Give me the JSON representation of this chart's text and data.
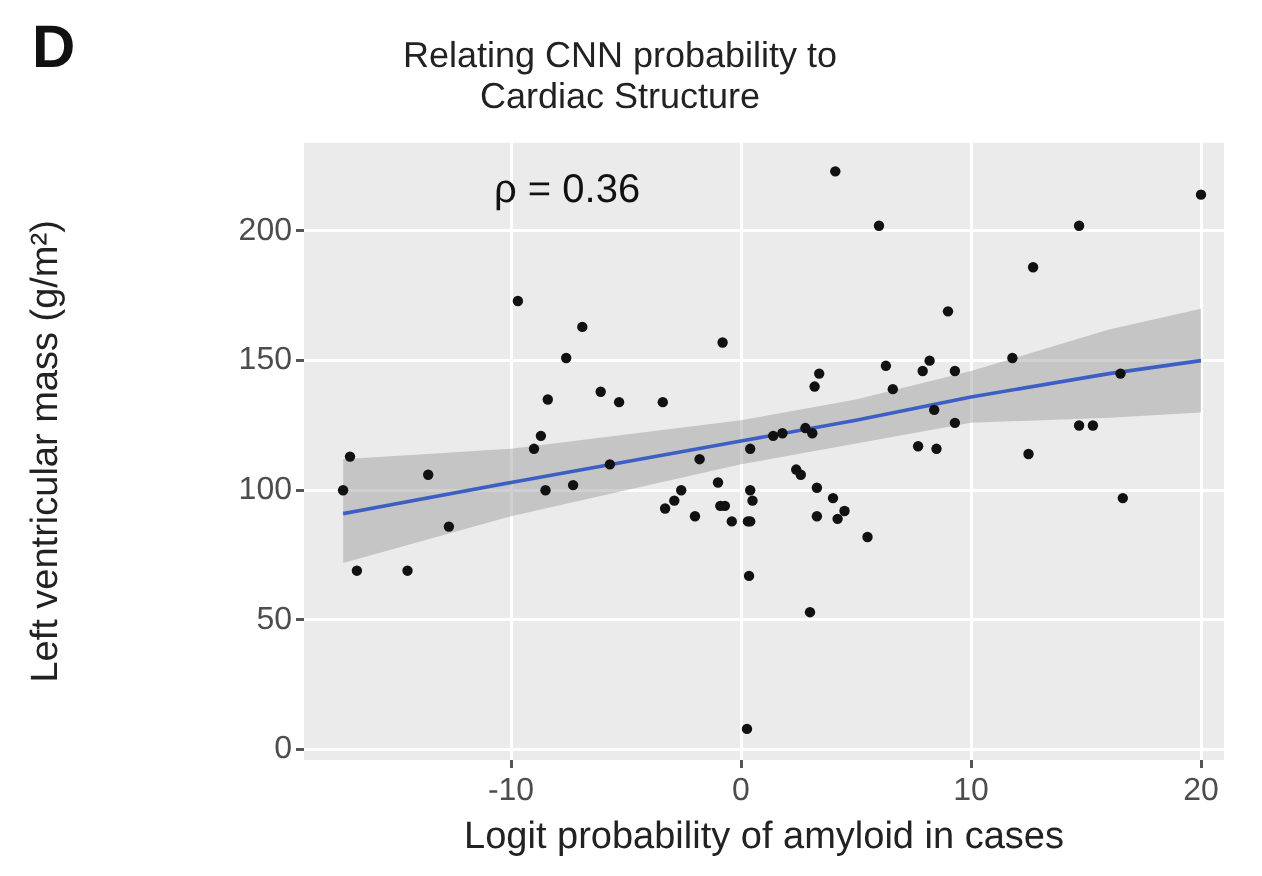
{
  "chart_data": {
    "type": "scatter",
    "title": "Relating CNN probability to\nCardiac Structure",
    "xlabel": "Logit probability of amyloid in cases",
    "ylabel": "Left ventricular mass (g/m²)",
    "annotations": [
      "D",
      "ρ = 0.36"
    ],
    "xlim": [
      -19,
      21
    ],
    "xticks": [
      -10,
      0,
      10,
      20
    ],
    "ylim": [
      -4,
      234
    ],
    "yticks": [
      0,
      50,
      100,
      150,
      200
    ],
    "grid": true,
    "legend": false,
    "marker": "circle",
    "series": [
      {
        "color": "#111111",
        "x": [
          -17.3,
          -17.0,
          -16.7,
          -14.5,
          -13.6,
          -12.7,
          -9.7,
          -9.0,
          -8.7,
          -8.5,
          -8.4,
          -7.6,
          -6.9,
          -7.3,
          -6.1,
          -5.7,
          -5.3,
          -3.4,
          -3.3,
          -2.9,
          -2.6,
          -2.0,
          -1.8,
          -0.8,
          -1.0,
          -0.9,
          -0.7,
          -0.4,
          0.3,
          0.4,
          0.35,
          0.26,
          0.4,
          0.4,
          0.5,
          4.1,
          6.0,
          1.4,
          1.8,
          2.8,
          3.1,
          2.4,
          2.6,
          3.2,
          3.4,
          3.3,
          3.3,
          4.0,
          4.2,
          4.5,
          5.5,
          3.0,
          6.3,
          6.6,
          7.7,
          7.9,
          8.2,
          8.5,
          9.0,
          9.3,
          9.3,
          8.4,
          11.8,
          12.5,
          12.7,
          14.7,
          14.7,
          15.3,
          16.5,
          16.6,
          20.0
        ],
        "values": [
          100,
          113,
          69,
          69,
          106,
          86,
          173,
          116,
          121,
          100,
          135,
          151,
          163,
          102,
          138,
          110,
          134,
          134,
          93,
          96,
          100,
          90,
          112,
          157,
          103,
          94,
          94,
          88,
          88,
          88,
          67,
          8,
          116,
          100,
          96,
          223,
          202,
          121,
          122,
          124,
          122,
          108,
          106,
          140,
          145,
          101,
          90,
          97,
          89,
          92,
          82,
          53,
          148,
          139,
          117,
          146,
          150,
          116,
          169,
          146,
          126,
          131,
          151,
          114,
          186,
          202,
          125,
          125,
          145,
          97,
          214
        ]
      },
      {
        "type": "line",
        "color": "#3d5fc4",
        "line_style": "solid",
        "marker": "none",
        "x": [
          -17.3,
          -10,
          0,
          5,
          10,
          16,
          20
        ],
        "values": [
          91,
          103,
          119,
          127,
          136,
          145,
          150
        ],
        "lower": [
          72,
          90,
          110,
          118,
          126,
          128,
          130
        ],
        "upper": [
          112,
          116,
          127,
          135,
          146,
          162,
          170
        ]
      }
    ]
  }
}
